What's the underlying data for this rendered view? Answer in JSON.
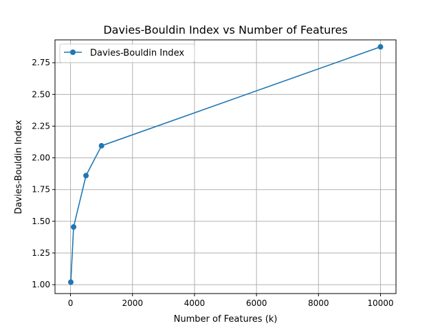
{
  "chart_data": {
    "type": "line",
    "title": "Davies-Bouldin Index vs Number of Features",
    "xlabel": "Number of Features (k)",
    "ylabel": "Davies-Bouldin Index",
    "xlim": [
      -500,
      10500
    ],
    "ylim": [
      0.93,
      2.93
    ],
    "xticks": [
      0,
      2000,
      4000,
      6000,
      8000,
      10000
    ],
    "xtick_labels": [
      "0",
      "2000",
      "4000",
      "6000",
      "8000",
      "10000"
    ],
    "yticks": [
      1.0,
      1.25,
      1.5,
      1.75,
      2.0,
      2.25,
      2.5,
      2.75
    ],
    "ytick_labels": [
      "1.00",
      "1.25",
      "1.50",
      "1.75",
      "2.00",
      "2.25",
      "2.50",
      "2.75"
    ],
    "grid": true,
    "legend_position": "top-left",
    "series": [
      {
        "name": "Davies-Bouldin Index",
        "color": "#1f77b4",
        "marker": "circle",
        "x": [
          10,
          100,
          500,
          1000,
          10000
        ],
        "y": [
          1.02,
          1.455,
          1.86,
          2.095,
          2.875
        ]
      }
    ]
  }
}
